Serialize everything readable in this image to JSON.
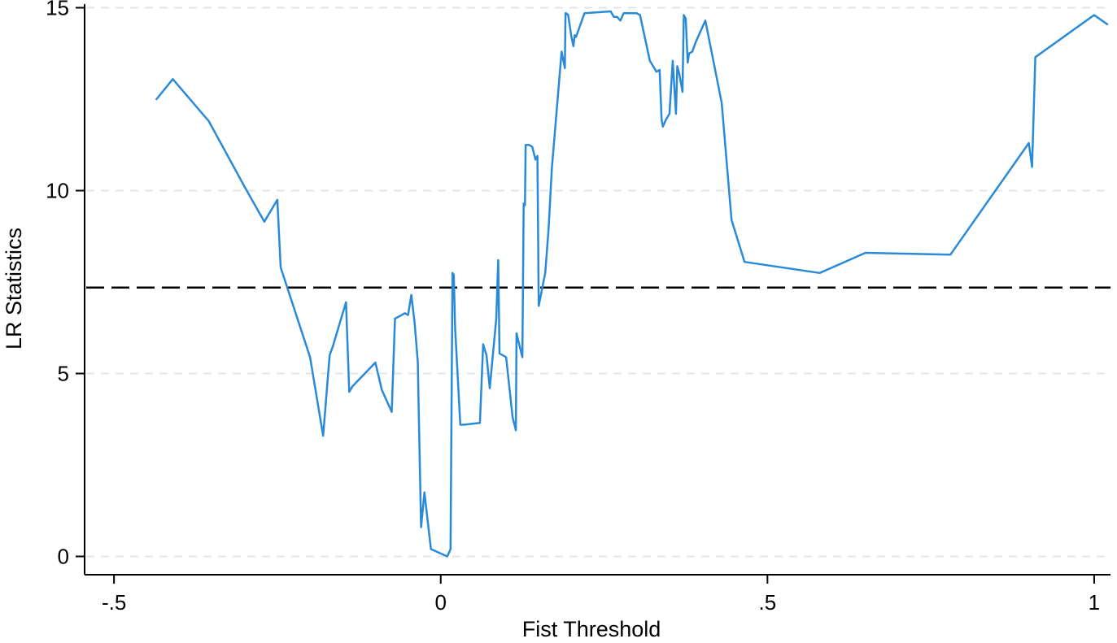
{
  "chart_data": {
    "type": "line",
    "title": "",
    "xlabel": "Fist Threshold",
    "ylabel": "LR Statistics",
    "xlim": [
      -0.545,
      1.025
    ],
    "ylim": [
      -0.5,
      15.1
    ],
    "x_ticks": [
      {
        "value": -0.5,
        "label": "-.5"
      },
      {
        "value": 0,
        "label": "0"
      },
      {
        "value": 0.5,
        "label": ".5"
      },
      {
        "value": 1,
        "label": "1"
      }
    ],
    "y_ticks": [
      {
        "value": 0,
        "label": "0"
      },
      {
        "value": 5,
        "label": "5"
      },
      {
        "value": 10,
        "label": "10"
      },
      {
        "value": 15,
        "label": "15"
      }
    ],
    "grid": true,
    "grid_axis": "y",
    "legend": "none",
    "line_color": "#2a8ad8",
    "reference_line": {
      "y": 7.35,
      "style": "dashed",
      "color": "#000000"
    },
    "series": [
      {
        "x": [
          -0.435,
          -0.41,
          -0.355,
          -0.3,
          -0.27,
          -0.25,
          -0.245,
          -0.2,
          -0.18,
          -0.17,
          -0.165,
          -0.145,
          -0.14,
          -0.135,
          -0.1,
          -0.09,
          -0.075,
          -0.07,
          -0.055,
          -0.05,
          -0.045,
          -0.04,
          -0.035,
          -0.034,
          -0.03,
          -0.025,
          -0.015,
          0.01,
          0.015,
          0.018,
          0.02,
          0.022,
          0.03,
          0.035,
          0.06,
          0.065,
          0.07,
          0.075,
          0.08,
          0.085,
          0.088,
          0.09,
          0.1,
          0.11,
          0.115,
          0.116,
          0.118,
          0.125,
          0.127,
          0.129,
          0.13,
          0.135,
          0.14,
          0.145,
          0.148,
          0.15,
          0.16,
          0.165,
          0.17,
          0.185,
          0.19,
          0.191,
          0.192,
          0.195,
          0.2,
          0.203,
          0.205,
          0.207,
          0.21,
          0.22,
          0.26,
          0.265,
          0.27,
          0.275,
          0.28,
          0.285,
          0.3,
          0.305,
          0.32,
          0.33,
          0.335,
          0.338,
          0.34,
          0.345,
          0.35,
          0.355,
          0.36,
          0.362,
          0.365,
          0.37,
          0.372,
          0.375,
          0.378,
          0.38,
          0.385,
          0.39,
          0.405,
          0.43,
          0.445,
          0.465,
          0.58,
          0.65,
          0.78,
          0.9,
          0.905,
          0.91,
          1.0,
          1.02
        ],
        "y": [
          12.5,
          13.05,
          11.9,
          10.1,
          9.15,
          9.75,
          7.9,
          5.45,
          3.3,
          5.5,
          5.75,
          6.95,
          4.5,
          4.65,
          5.3,
          4.55,
          3.95,
          6.5,
          6.65,
          6.6,
          7.15,
          6.4,
          5.3,
          4.3,
          0.8,
          1.75,
          0.2,
          0.0,
          0.2,
          7.75,
          7.7,
          6.25,
          3.6,
          3.6,
          3.65,
          5.8,
          5.5,
          4.6,
          5.55,
          6.5,
          8.1,
          5.55,
          5.45,
          3.8,
          3.45,
          6.1,
          5.95,
          5.45,
          9.65,
          9.6,
          11.25,
          11.25,
          11.2,
          10.85,
          10.95,
          6.85,
          7.75,
          8.95,
          10.6,
          13.8,
          13.35,
          14.85,
          14.85,
          14.8,
          14.2,
          13.95,
          14.25,
          14.2,
          14.35,
          14.85,
          14.9,
          14.75,
          14.75,
          14.65,
          14.85,
          14.85,
          14.85,
          14.8,
          13.55,
          13.25,
          13.3,
          11.95,
          11.75,
          11.95,
          12.1,
          13.55,
          12.1,
          13.4,
          13.2,
          12.7,
          14.8,
          14.7,
          13.5,
          13.75,
          13.8,
          14.05,
          14.65,
          12.4,
          9.2,
          8.05,
          7.75,
          8.3,
          8.25,
          11.3,
          10.65,
          13.65,
          14.8,
          14.55
        ]
      }
    ]
  }
}
